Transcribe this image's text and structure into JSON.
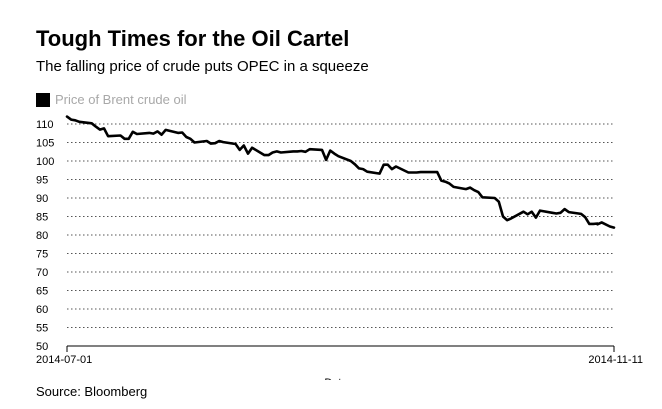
{
  "title": "Tough Times for the Oil Cartel",
  "subtitle": "The falling price of crude puts OPEC in a squeeze",
  "source": "Source: Bloomberg",
  "chart_data": {
    "type": "line",
    "title": "Tough Times for the Oil Cartel",
    "subtitle": "The falling price of crude puts OPEC in a squeeze",
    "xlabel": "Date",
    "ylabel": "",
    "ylim": [
      50,
      110
    ],
    "yticks": [
      50,
      55,
      60,
      65,
      70,
      75,
      80,
      85,
      90,
      95,
      100,
      105,
      110
    ],
    "xticks": [
      "2014-07-01",
      "2014-11-11"
    ],
    "grid": "horizontal dotted",
    "legend_position": "top-left",
    "series": [
      {
        "name": "Price of Brent crude oil",
        "color": "#000000",
        "points": [
          [
            "2014-07-01",
            112.0
          ],
          [
            "2014-07-02",
            111.2
          ],
          [
            "2014-07-03",
            111.0
          ],
          [
            "2014-07-04",
            110.6
          ],
          [
            "2014-07-07",
            110.2
          ],
          [
            "2014-07-08",
            109.3
          ],
          [
            "2014-07-09",
            108.5
          ],
          [
            "2014-07-10",
            108.8
          ],
          [
            "2014-07-11",
            106.7
          ],
          [
            "2014-07-14",
            106.9
          ],
          [
            "2014-07-15",
            106.0
          ],
          [
            "2014-07-16",
            106.0
          ],
          [
            "2014-07-17",
            107.9
          ],
          [
            "2014-07-18",
            107.3
          ],
          [
            "2014-07-21",
            107.6
          ],
          [
            "2014-07-22",
            107.4
          ],
          [
            "2014-07-23",
            108.0
          ],
          [
            "2014-07-24",
            107.1
          ],
          [
            "2014-07-25",
            108.4
          ],
          [
            "2014-07-28",
            107.6
          ],
          [
            "2014-07-29",
            107.7
          ],
          [
            "2014-07-30",
            106.5
          ],
          [
            "2014-07-31",
            106.0
          ],
          [
            "2014-08-01",
            105.0
          ],
          [
            "2014-08-04",
            105.4
          ],
          [
            "2014-08-05",
            104.7
          ],
          [
            "2014-08-06",
            104.8
          ],
          [
            "2014-08-07",
            105.4
          ],
          [
            "2014-08-08",
            105.1
          ],
          [
            "2014-08-11",
            104.6
          ],
          [
            "2014-08-12",
            103.0
          ],
          [
            "2014-08-13",
            104.2
          ],
          [
            "2014-08-14",
            102.0
          ],
          [
            "2014-08-15",
            103.6
          ],
          [
            "2014-08-18",
            101.6
          ],
          [
            "2014-08-19",
            101.6
          ],
          [
            "2014-08-20",
            102.3
          ],
          [
            "2014-08-21",
            102.6
          ],
          [
            "2014-08-22",
            102.3
          ],
          [
            "2014-08-25",
            102.6
          ],
          [
            "2014-08-26",
            102.6
          ],
          [
            "2014-08-27",
            102.7
          ],
          [
            "2014-08-28",
            102.5
          ],
          [
            "2014-08-29",
            103.2
          ],
          [
            "2014-09-01",
            103.0
          ],
          [
            "2014-09-02",
            100.3
          ],
          [
            "2014-09-03",
            102.8
          ],
          [
            "2014-09-04",
            102.0
          ],
          [
            "2014-09-05",
            101.3
          ],
          [
            "2014-09-08",
            100.0
          ],
          [
            "2014-09-09",
            99.1
          ],
          [
            "2014-09-10",
            98.0
          ],
          [
            "2014-09-11",
            97.8
          ],
          [
            "2014-09-12",
            97.1
          ],
          [
            "2014-09-15",
            96.6
          ],
          [
            "2014-09-16",
            99.0
          ],
          [
            "2014-09-17",
            99.0
          ],
          [
            "2014-09-18",
            97.8
          ],
          [
            "2014-09-19",
            98.5
          ],
          [
            "2014-09-22",
            96.9
          ],
          [
            "2014-09-23",
            96.9
          ],
          [
            "2014-09-24",
            96.9
          ],
          [
            "2014-09-25",
            97.0
          ],
          [
            "2014-09-26",
            97.0
          ],
          [
            "2014-09-29",
            97.0
          ],
          [
            "2014-09-30",
            94.7
          ],
          [
            "2014-10-01",
            94.4
          ],
          [
            "2014-10-02",
            93.9
          ],
          [
            "2014-10-03",
            93.0
          ],
          [
            "2014-10-06",
            92.4
          ],
          [
            "2014-10-07",
            92.8
          ],
          [
            "2014-10-08",
            92.1
          ],
          [
            "2014-10-09",
            91.6
          ],
          [
            "2014-10-10",
            90.2
          ],
          [
            "2014-10-13",
            90.0
          ],
          [
            "2014-10-14",
            89.0
          ],
          [
            "2014-10-15",
            85.0
          ],
          [
            "2014-10-16",
            84.0
          ],
          [
            "2014-10-17",
            84.5
          ],
          [
            "2014-10-20",
            86.3
          ],
          [
            "2014-10-21",
            85.6
          ],
          [
            "2014-10-22",
            86.3
          ],
          [
            "2014-10-23",
            84.7
          ],
          [
            "2014-10-24",
            86.6
          ],
          [
            "2014-10-27",
            86.0
          ],
          [
            "2014-10-28",
            85.8
          ],
          [
            "2014-10-29",
            86.0
          ],
          [
            "2014-10-30",
            87.0
          ],
          [
            "2014-10-31",
            86.2
          ],
          [
            "2014-11-03",
            85.7
          ],
          [
            "2014-11-04",
            84.8
          ],
          [
            "2014-11-05",
            83.0
          ],
          [
            "2014-11-06",
            83.0
          ],
          [
            "2014-11-07",
            83.1
          ],
          [
            "2014-11-07",
            82.9
          ],
          [
            "2014-11-08",
            83.4
          ],
          [
            "2014-11-10",
            82.3
          ],
          [
            "2014-11-11",
            82.0
          ]
        ]
      }
    ]
  }
}
